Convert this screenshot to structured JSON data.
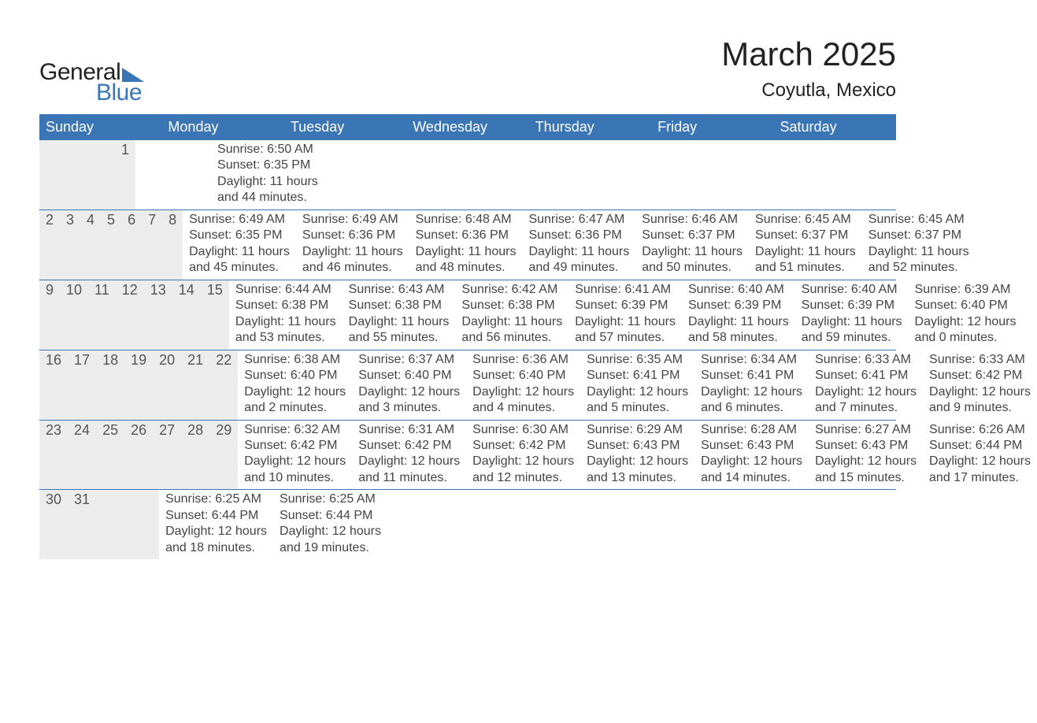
{
  "logo": {
    "text_general": "General",
    "text_blue": "Blue",
    "triangle_color": "#3a76b5"
  },
  "title": "March 2025",
  "location": "Coyutla, Mexico",
  "colors": {
    "header_bg": "#3a76b5",
    "header_text": "#ffffff",
    "daynum_bg": "#ececec",
    "row_border": "#3a76b5",
    "body_text": "#444444",
    "title_text": "#222222",
    "background": "#ffffff"
  },
  "typography": {
    "month_title_fontsize": 42,
    "location_fontsize": 24,
    "day_header_fontsize": 18,
    "daynum_fontsize": 18,
    "body_fontsize": 16
  },
  "day_headers": [
    "Sunday",
    "Monday",
    "Tuesday",
    "Wednesday",
    "Thursday",
    "Friday",
    "Saturday"
  ],
  "weeks": [
    [
      {
        "num": "",
        "sunrise": "",
        "sunset": "",
        "daylight1": "",
        "daylight2": ""
      },
      {
        "num": "",
        "sunrise": "",
        "sunset": "",
        "daylight1": "",
        "daylight2": ""
      },
      {
        "num": "",
        "sunrise": "",
        "sunset": "",
        "daylight1": "",
        "daylight2": ""
      },
      {
        "num": "",
        "sunrise": "",
        "sunset": "",
        "daylight1": "",
        "daylight2": ""
      },
      {
        "num": "",
        "sunrise": "",
        "sunset": "",
        "daylight1": "",
        "daylight2": ""
      },
      {
        "num": "",
        "sunrise": "",
        "sunset": "",
        "daylight1": "",
        "daylight2": ""
      },
      {
        "num": "1",
        "sunrise": "Sunrise: 6:50 AM",
        "sunset": "Sunset: 6:35 PM",
        "daylight1": "Daylight: 11 hours",
        "daylight2": "and 44 minutes."
      }
    ],
    [
      {
        "num": "2",
        "sunrise": "Sunrise: 6:49 AM",
        "sunset": "Sunset: 6:35 PM",
        "daylight1": "Daylight: 11 hours",
        "daylight2": "and 45 minutes."
      },
      {
        "num": "3",
        "sunrise": "Sunrise: 6:49 AM",
        "sunset": "Sunset: 6:36 PM",
        "daylight1": "Daylight: 11 hours",
        "daylight2": "and 46 minutes."
      },
      {
        "num": "4",
        "sunrise": "Sunrise: 6:48 AM",
        "sunset": "Sunset: 6:36 PM",
        "daylight1": "Daylight: 11 hours",
        "daylight2": "and 48 minutes."
      },
      {
        "num": "5",
        "sunrise": "Sunrise: 6:47 AM",
        "sunset": "Sunset: 6:36 PM",
        "daylight1": "Daylight: 11 hours",
        "daylight2": "and 49 minutes."
      },
      {
        "num": "6",
        "sunrise": "Sunrise: 6:46 AM",
        "sunset": "Sunset: 6:37 PM",
        "daylight1": "Daylight: 11 hours",
        "daylight2": "and 50 minutes."
      },
      {
        "num": "7",
        "sunrise": "Sunrise: 6:45 AM",
        "sunset": "Sunset: 6:37 PM",
        "daylight1": "Daylight: 11 hours",
        "daylight2": "and 51 minutes."
      },
      {
        "num": "8",
        "sunrise": "Sunrise: 6:45 AM",
        "sunset": "Sunset: 6:37 PM",
        "daylight1": "Daylight: 11 hours",
        "daylight2": "and 52 minutes."
      }
    ],
    [
      {
        "num": "9",
        "sunrise": "Sunrise: 6:44 AM",
        "sunset": "Sunset: 6:38 PM",
        "daylight1": "Daylight: 11 hours",
        "daylight2": "and 53 minutes."
      },
      {
        "num": "10",
        "sunrise": "Sunrise: 6:43 AM",
        "sunset": "Sunset: 6:38 PM",
        "daylight1": "Daylight: 11 hours",
        "daylight2": "and 55 minutes."
      },
      {
        "num": "11",
        "sunrise": "Sunrise: 6:42 AM",
        "sunset": "Sunset: 6:38 PM",
        "daylight1": "Daylight: 11 hours",
        "daylight2": "and 56 minutes."
      },
      {
        "num": "12",
        "sunrise": "Sunrise: 6:41 AM",
        "sunset": "Sunset: 6:39 PM",
        "daylight1": "Daylight: 11 hours",
        "daylight2": "and 57 minutes."
      },
      {
        "num": "13",
        "sunrise": "Sunrise: 6:40 AM",
        "sunset": "Sunset: 6:39 PM",
        "daylight1": "Daylight: 11 hours",
        "daylight2": "and 58 minutes."
      },
      {
        "num": "14",
        "sunrise": "Sunrise: 6:40 AM",
        "sunset": "Sunset: 6:39 PM",
        "daylight1": "Daylight: 11 hours",
        "daylight2": "and 59 minutes."
      },
      {
        "num": "15",
        "sunrise": "Sunrise: 6:39 AM",
        "sunset": "Sunset: 6:40 PM",
        "daylight1": "Daylight: 12 hours",
        "daylight2": "and 0 minutes."
      }
    ],
    [
      {
        "num": "16",
        "sunrise": "Sunrise: 6:38 AM",
        "sunset": "Sunset: 6:40 PM",
        "daylight1": "Daylight: 12 hours",
        "daylight2": "and 2 minutes."
      },
      {
        "num": "17",
        "sunrise": "Sunrise: 6:37 AM",
        "sunset": "Sunset: 6:40 PM",
        "daylight1": "Daylight: 12 hours",
        "daylight2": "and 3 minutes."
      },
      {
        "num": "18",
        "sunrise": "Sunrise: 6:36 AM",
        "sunset": "Sunset: 6:40 PM",
        "daylight1": "Daylight: 12 hours",
        "daylight2": "and 4 minutes."
      },
      {
        "num": "19",
        "sunrise": "Sunrise: 6:35 AM",
        "sunset": "Sunset: 6:41 PM",
        "daylight1": "Daylight: 12 hours",
        "daylight2": "and 5 minutes."
      },
      {
        "num": "20",
        "sunrise": "Sunrise: 6:34 AM",
        "sunset": "Sunset: 6:41 PM",
        "daylight1": "Daylight: 12 hours",
        "daylight2": "and 6 minutes."
      },
      {
        "num": "21",
        "sunrise": "Sunrise: 6:33 AM",
        "sunset": "Sunset: 6:41 PM",
        "daylight1": "Daylight: 12 hours",
        "daylight2": "and 7 minutes."
      },
      {
        "num": "22",
        "sunrise": "Sunrise: 6:33 AM",
        "sunset": "Sunset: 6:42 PM",
        "daylight1": "Daylight: 12 hours",
        "daylight2": "and 9 minutes."
      }
    ],
    [
      {
        "num": "23",
        "sunrise": "Sunrise: 6:32 AM",
        "sunset": "Sunset: 6:42 PM",
        "daylight1": "Daylight: 12 hours",
        "daylight2": "and 10 minutes."
      },
      {
        "num": "24",
        "sunrise": "Sunrise: 6:31 AM",
        "sunset": "Sunset: 6:42 PM",
        "daylight1": "Daylight: 12 hours",
        "daylight2": "and 11 minutes."
      },
      {
        "num": "25",
        "sunrise": "Sunrise: 6:30 AM",
        "sunset": "Sunset: 6:42 PM",
        "daylight1": "Daylight: 12 hours",
        "daylight2": "and 12 minutes."
      },
      {
        "num": "26",
        "sunrise": "Sunrise: 6:29 AM",
        "sunset": "Sunset: 6:43 PM",
        "daylight1": "Daylight: 12 hours",
        "daylight2": "and 13 minutes."
      },
      {
        "num": "27",
        "sunrise": "Sunrise: 6:28 AM",
        "sunset": "Sunset: 6:43 PM",
        "daylight1": "Daylight: 12 hours",
        "daylight2": "and 14 minutes."
      },
      {
        "num": "28",
        "sunrise": "Sunrise: 6:27 AM",
        "sunset": "Sunset: 6:43 PM",
        "daylight1": "Daylight: 12 hours",
        "daylight2": "and 15 minutes."
      },
      {
        "num": "29",
        "sunrise": "Sunrise: 6:26 AM",
        "sunset": "Sunset: 6:44 PM",
        "daylight1": "Daylight: 12 hours",
        "daylight2": "and 17 minutes."
      }
    ],
    [
      {
        "num": "30",
        "sunrise": "Sunrise: 6:25 AM",
        "sunset": "Sunset: 6:44 PM",
        "daylight1": "Daylight: 12 hours",
        "daylight2": "and 18 minutes."
      },
      {
        "num": "31",
        "sunrise": "Sunrise: 6:25 AM",
        "sunset": "Sunset: 6:44 PM",
        "daylight1": "Daylight: 12 hours",
        "daylight2": "and 19 minutes."
      },
      {
        "num": "",
        "sunrise": "",
        "sunset": "",
        "daylight1": "",
        "daylight2": ""
      },
      {
        "num": "",
        "sunrise": "",
        "sunset": "",
        "daylight1": "",
        "daylight2": ""
      },
      {
        "num": "",
        "sunrise": "",
        "sunset": "",
        "daylight1": "",
        "daylight2": ""
      },
      {
        "num": "",
        "sunrise": "",
        "sunset": "",
        "daylight1": "",
        "daylight2": ""
      },
      {
        "num": "",
        "sunrise": "",
        "sunset": "",
        "daylight1": "",
        "daylight2": ""
      }
    ]
  ]
}
